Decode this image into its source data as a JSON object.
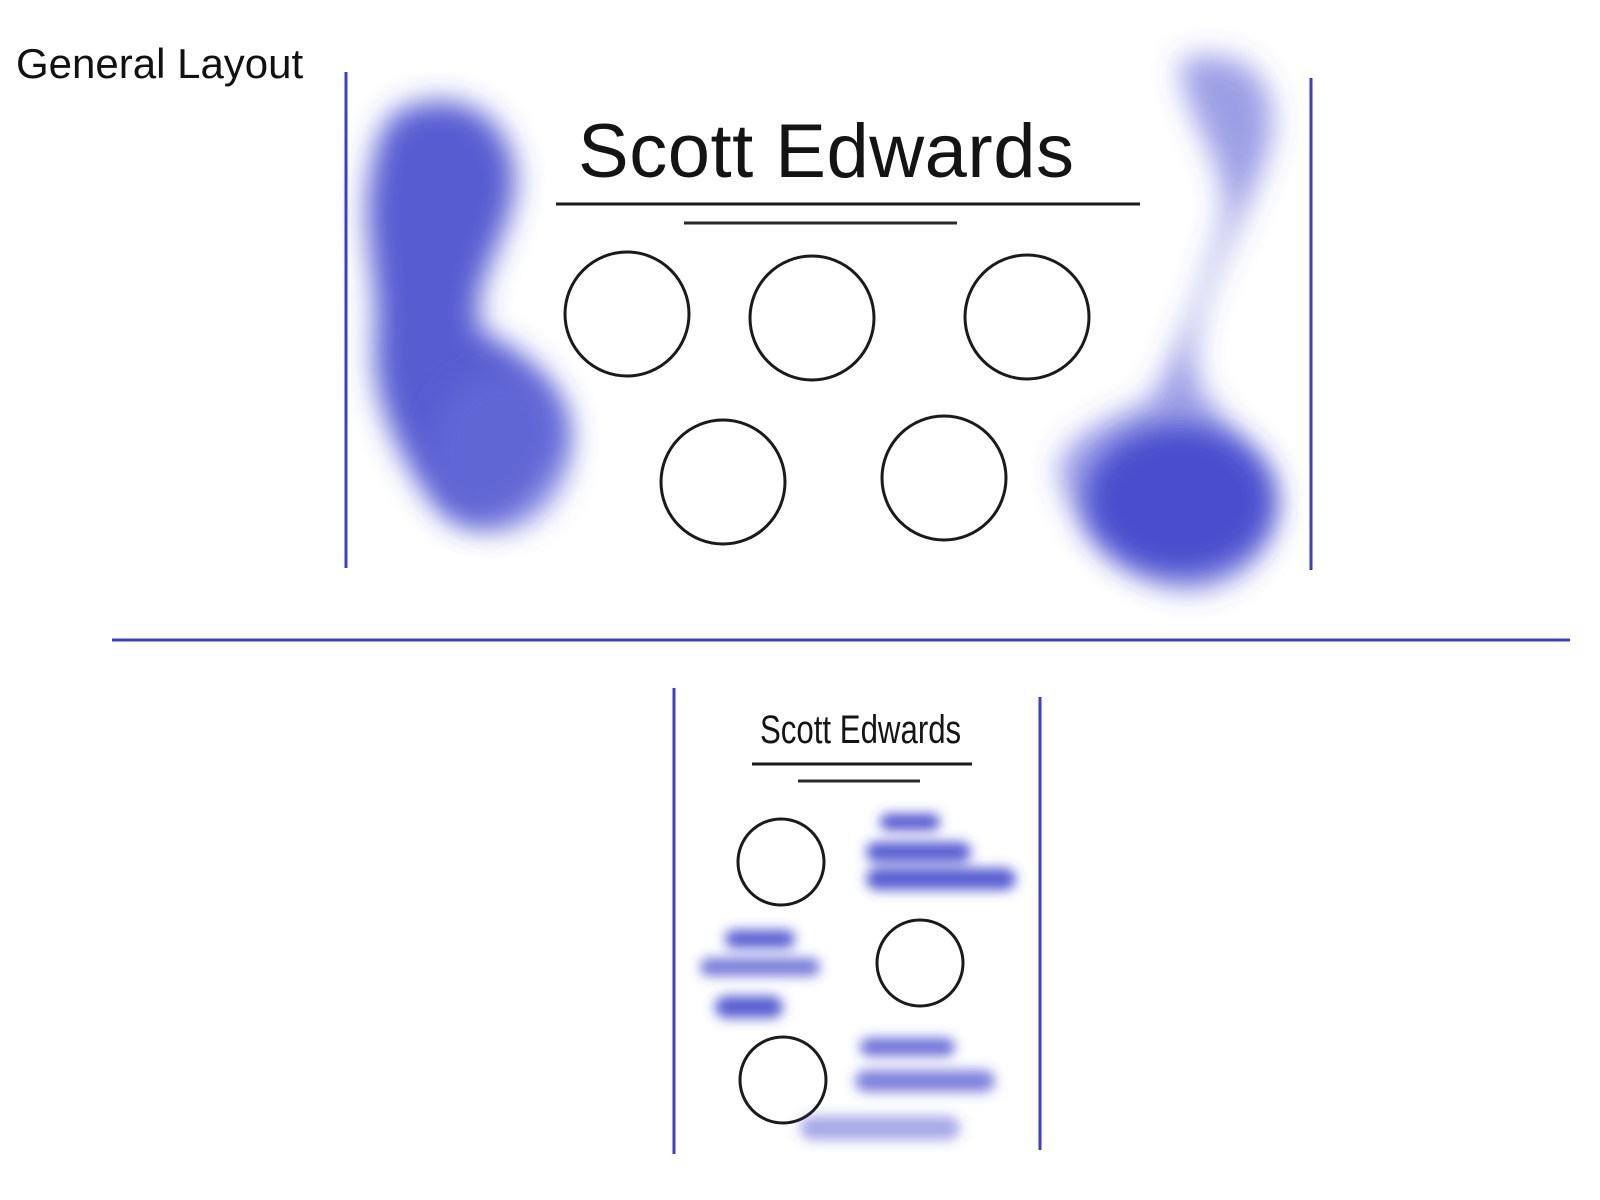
{
  "title": "General Layout",
  "desktop": {
    "name": "Scott Edwards",
    "circle_count": 5
  },
  "mobile": {
    "name": "Scott Edwards",
    "circle_count": 3
  },
  "colors": {
    "accent": "#3a3fc9",
    "ink": "#141414"
  }
}
